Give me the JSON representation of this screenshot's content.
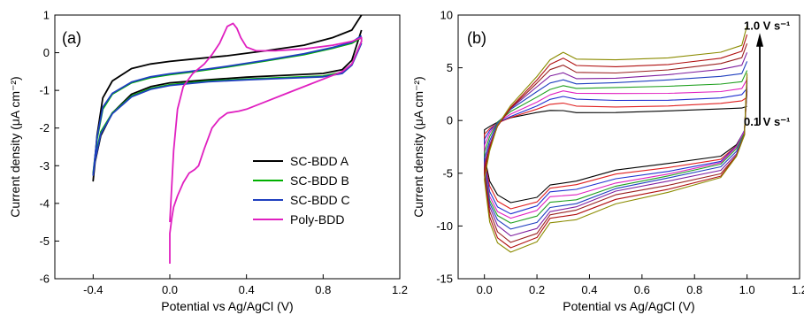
{
  "chart_data": [
    {
      "type": "line",
      "panel_label": "(a)",
      "xlabel": "Potential vs Ag/AgCl (V)",
      "ylabel": "Current density (μA cm⁻²)",
      "xlim": [
        -0.6,
        1.2
      ],
      "ylim": [
        -6,
        1
      ],
      "xticks": [
        -0.4,
        0.0,
        0.4,
        0.8,
        1.2
      ],
      "xtick_labels": [
        "-0.4",
        "0.0",
        "0.4",
        "0.8",
        "1.2"
      ],
      "yticks": [
        -6,
        -5,
        -4,
        -3,
        -2,
        -1,
        0,
        1
      ],
      "ytick_labels": [
        "-6",
        "-5",
        "-4",
        "-3",
        "-2",
        "-1",
        "0",
        "1"
      ],
      "legend_position": "lower-right",
      "series": [
        {
          "name": "SC-BDD A",
          "color": "#000000",
          "x": [
            1.0,
            0.95,
            0.85,
            0.7,
            0.5,
            0.3,
            0.1,
            0.0,
            -0.1,
            -0.2,
            -0.3,
            -0.35,
            -0.38,
            -0.4,
            -0.39,
            -0.36,
            -0.3,
            -0.2,
            -0.1,
            0.0,
            0.2,
            0.4,
            0.6,
            0.8,
            0.9,
            0.95,
            1.0
          ],
          "y": [
            1.0,
            0.6,
            0.4,
            0.2,
            0.05,
            -0.08,
            -0.18,
            -0.23,
            -0.3,
            -0.42,
            -0.75,
            -1.2,
            -2.2,
            -3.4,
            -2.9,
            -2.2,
            -1.6,
            -1.1,
            -0.9,
            -0.8,
            -0.72,
            -0.65,
            -0.6,
            -0.55,
            -0.45,
            -0.2,
            0.6
          ]
        },
        {
          "name": "SC-BDD B",
          "color": "#00b000",
          "x": [
            1.0,
            0.95,
            0.85,
            0.7,
            0.5,
            0.3,
            0.1,
            0.0,
            -0.1,
            -0.2,
            -0.3,
            -0.35,
            -0.38,
            -0.4,
            -0.39,
            -0.36,
            -0.3,
            -0.2,
            -0.1,
            0.0,
            0.2,
            0.4,
            0.6,
            0.8,
            0.9,
            0.95,
            1.0
          ],
          "y": [
            0.4,
            0.25,
            0.12,
            -0.05,
            -0.22,
            -0.38,
            -0.52,
            -0.58,
            -0.66,
            -0.8,
            -1.1,
            -1.5,
            -2.3,
            -3.2,
            -2.8,
            -2.1,
            -1.6,
            -1.15,
            -0.95,
            -0.85,
            -0.75,
            -0.7,
            -0.66,
            -0.62,
            -0.52,
            -0.3,
            0.3
          ]
        },
        {
          "name": "SC-BDD C",
          "color": "#1f3fbf",
          "x": [
            1.0,
            0.95,
            0.85,
            0.7,
            0.5,
            0.3,
            0.1,
            0.0,
            -0.1,
            -0.2,
            -0.3,
            -0.35,
            -0.38,
            -0.4,
            -0.39,
            -0.36,
            -0.3,
            -0.2,
            -0.1,
            0.0,
            0.2,
            0.4,
            0.6,
            0.8,
            0.9,
            0.95,
            1.0
          ],
          "y": [
            0.45,
            0.28,
            0.14,
            -0.03,
            -0.2,
            -0.36,
            -0.5,
            -0.56,
            -0.64,
            -0.78,
            -1.08,
            -1.45,
            -2.25,
            -3.25,
            -2.85,
            -2.15,
            -1.62,
            -1.17,
            -0.97,
            -0.87,
            -0.77,
            -0.72,
            -0.68,
            -0.64,
            -0.55,
            -0.33,
            0.25
          ]
        },
        {
          "name": "Poly-BDD",
          "color": "#e020c0",
          "x": [
            0.0,
            0.0,
            0.01,
            0.02,
            0.04,
            0.07,
            0.1,
            0.13,
            0.15,
            0.18,
            0.22,
            0.26,
            0.3,
            0.36,
            0.4,
            0.5,
            0.6,
            0.7,
            0.8,
            0.9,
            0.95,
            1.0,
            1.0,
            0.95,
            0.85,
            0.7,
            0.55,
            0.45,
            0.4,
            0.37,
            0.35,
            0.33,
            0.3,
            0.26,
            0.22,
            0.18,
            0.12,
            0.07,
            0.04,
            0.02,
            0.0
          ],
          "y": [
            -5.6,
            -4.8,
            -4.4,
            -4.1,
            -3.8,
            -3.45,
            -3.2,
            -3.1,
            -3.0,
            -2.55,
            -2.0,
            -1.75,
            -1.6,
            -1.55,
            -1.5,
            -1.3,
            -1.1,
            -0.9,
            -0.7,
            -0.5,
            -0.3,
            0.3,
            0.4,
            0.3,
            0.2,
            0.1,
            0.05,
            0.05,
            0.15,
            0.4,
            0.65,
            0.78,
            0.7,
            0.25,
            -0.05,
            -0.3,
            -0.55,
            -0.9,
            -1.5,
            -2.6,
            -4.5
          ]
        }
      ]
    },
    {
      "type": "line",
      "panel_label": "(b)",
      "xlabel": "Potential vs Ag/AgCl (V)",
      "ylabel": "Current density (μA cm⁻²)",
      "xlim": [
        -0.1,
        1.2
      ],
      "ylim": [
        -15,
        10
      ],
      "xticks": [
        0.0,
        0.2,
        0.4,
        0.6,
        0.8,
        1.0,
        1.2
      ],
      "xtick_labels": [
        "0.0",
        "0.2",
        "0.4",
        "0.6",
        "0.8",
        "1.0",
        "1.2"
      ],
      "yticks": [
        -15,
        -10,
        -5,
        0,
        5,
        10
      ],
      "ytick_labels": [
        "-15",
        "-10",
        "-5",
        "0",
        "5",
        "10"
      ],
      "annotations": [
        {
          "text": "1.0 V s⁻¹",
          "x": 1.0,
          "y": 8.6
        },
        {
          "text": "0.1 V s⁻¹",
          "x": 1.0,
          "y": -0.5
        }
      ],
      "scan_rates_v_per_s": [
        0.1,
        0.2,
        0.3,
        0.4,
        0.5,
        0.6,
        0.7,
        0.8,
        0.9,
        1.0
      ],
      "series_colors": [
        "#000000",
        "#e02020",
        "#2030d0",
        "#e020c0",
        "#20a020",
        "#1f3fbf",
        "#8020a0",
        "#9a2020",
        "#b01010",
        "#8b8b00"
      ],
      "base_curve": {
        "x": [
          1.0,
          0.98,
          0.9,
          0.7,
          0.5,
          0.35,
          0.3,
          0.25,
          0.2,
          0.1,
          0.05,
          0.02,
          0.0,
          0.0,
          0.02,
          0.05,
          0.1,
          0.2,
          0.25,
          0.35,
          0.5,
          0.7,
          0.9,
          0.96,
          0.99,
          1.0
        ],
        "unit_y_top": [
          9.0,
          7.2,
          6.6,
          6.0,
          5.7,
          5.7,
          6.4,
          5.8,
          4.3,
          1.5,
          -0.5,
          -3.0,
          -5.6
        ],
        "unit_y_bottom": [
          -5.6,
          -9.5,
          -11.5,
          -12.5,
          -11.6,
          -9.8,
          -9.4,
          -7.8,
          -6.7,
          -5.4,
          -3.5,
          -1.5,
          4.5
        ]
      }
    }
  ]
}
